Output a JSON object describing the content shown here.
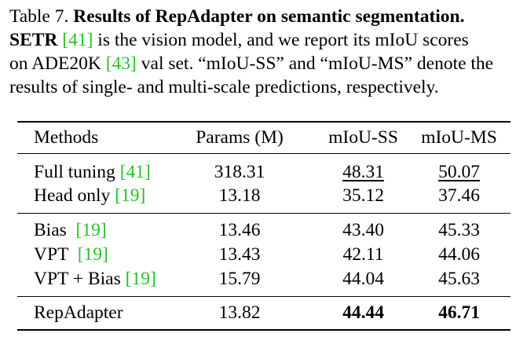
{
  "caption": {
    "label": "Table 7.",
    "title": "Results of RepAdapter on semantic segmentation.",
    "line2_bold": "SETR",
    "line2_cite": "[41]",
    "line2_rest": " is the vision model, and we report its mIoU scores",
    "line3_pre": "on ADE20K ",
    "line3_cite": "[43]",
    "line3_rest": " val set. “mIoU-SS” and “mIoU-MS” denote the",
    "line4": "results of single- and multi-scale predictions, respectively."
  },
  "table": {
    "headers": [
      "Methods",
      "Params (M)",
      "mIoU-SS",
      "mIoU-MS"
    ],
    "rows": [
      {
        "method": "Full tuning ",
        "cite": "[41]",
        "params": "318.31",
        "ss": "48.31",
        "ms": "50.07"
      },
      {
        "method": "Head only ",
        "cite": "[19]",
        "params": "13.18",
        "ss": "35.12",
        "ms": "37.46"
      },
      {
        "method": "Bias  ",
        "cite": "[19]",
        "params": "13.46",
        "ss": "43.40",
        "ms": "45.33"
      },
      {
        "method": "VPT  ",
        "cite": "[19]",
        "params": "13.43",
        "ss": "42.11",
        "ms": "44.06"
      },
      {
        "method": "VPT + Bias ",
        "cite": "[19]",
        "params": "15.79",
        "ss": "44.04",
        "ms": "45.63"
      },
      {
        "method": "RepAdapter",
        "cite": "",
        "params": "13.82",
        "ss": "44.44",
        "ms": "46.71"
      }
    ]
  },
  "colors": {
    "citation": "#22c322",
    "text": "#000000"
  }
}
